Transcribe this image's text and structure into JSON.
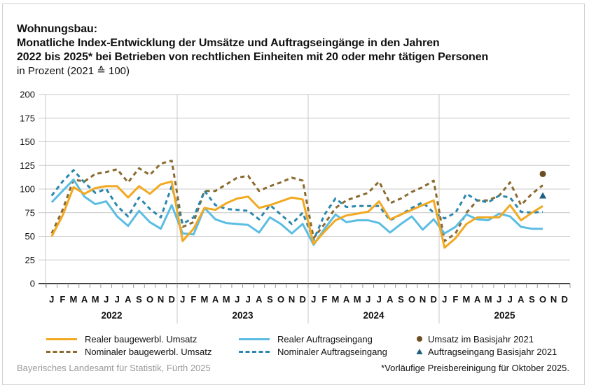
{
  "title": {
    "line1": "Wohnungsbau:",
    "line2": "Monatliche Index-Entwicklung der Umsätze und Auftragseingänge in den Jahren",
    "line3": "2022 bis 2025* bei Betrieben von rechtlichen Einheiten mit 20 oder mehr tätigen Personen",
    "subtitle": "in Prozent (2021 ≙ 100)"
  },
  "source": "Bayerisches Landesamt für Statistik, Fürth 2025",
  "footnote": "*Vorläufige Preisbereinigung für Oktober 2025.",
  "colors": {
    "real_umsatz": "#f2a922",
    "nominal_umsatz": "#8a6a2e",
    "real_auftrag": "#5cbde3",
    "nominal_auftrag": "#2b87ad",
    "marker_umsatz": "#6b4e22",
    "marker_auftrag": "#1c5f80",
    "grid": "#c8c8c8",
    "axis": "#444444"
  },
  "chart_data": {
    "type": "line",
    "title": "Monatliche Index-Entwicklung der Umsätze und Auftragseingänge 2022 bis 2025",
    "xlabel": "",
    "ylabel": "in Prozent (2021 = 100)",
    "ylim": [
      0,
      200
    ],
    "yticks": [
      0,
      25,
      50,
      75,
      100,
      125,
      150,
      175,
      200
    ],
    "grid": true,
    "legend_position": "bottom",
    "years": [
      "2022",
      "2023",
      "2024",
      "2025"
    ],
    "months": [
      "J",
      "F",
      "M",
      "A",
      "M",
      "J",
      "J",
      "A",
      "S",
      "O",
      "N",
      "D"
    ],
    "series": [
      {
        "key": "real_umsatz",
        "name": "Realer baugewerbl. Umsatz",
        "style": "solid",
        "values": [
          50,
          72,
          102,
          95,
          101,
          103,
          103,
          91,
          103,
          95,
          105,
          108,
          45,
          58,
          80,
          78,
          85,
          90,
          92,
          80,
          83,
          87,
          91,
          89,
          42,
          55,
          67,
          72,
          74,
          76,
          87,
          68,
          73,
          78,
          83,
          88,
          38,
          48,
          63,
          70,
          70,
          70,
          83,
          67,
          75,
          82
        ]
      },
      {
        "key": "nominal_umsatz",
        "name": "Nominaler baugewerbl. Umsatz",
        "style": "dashed",
        "values": [
          53,
          78,
          110,
          108,
          116,
          118,
          121,
          107,
          122,
          115,
          127,
          130,
          60,
          65,
          98,
          98,
          105,
          112,
          114,
          98,
          103,
          107,
          112,
          109,
          48,
          63,
          80,
          88,
          92,
          96,
          108,
          85,
          90,
          97,
          102,
          109,
          45,
          53,
          75,
          88,
          88,
          93,
          107,
          83,
          95,
          104
        ]
      },
      {
        "key": "real_auftrag",
        "name": "Realer Auftragseingang",
        "style": "solid",
        "values": [
          86,
          98,
          110,
          92,
          84,
          87,
          71,
          61,
          77,
          65,
          58,
          83,
          53,
          52,
          80,
          68,
          64,
          63,
          62,
          54,
          70,
          63,
          53,
          63,
          41,
          58,
          73,
          65,
          67,
          67,
          64,
          54,
          63,
          71,
          57,
          68,
          53,
          60,
          73,
          68,
          67,
          74,
          71,
          60,
          58,
          58
        ]
      },
      {
        "key": "nominal_auftrag",
        "name": "Nominaler Auftragseingang",
        "style": "dashed",
        "values": [
          93,
          108,
          120,
          107,
          96,
          100,
          82,
          71,
          91,
          79,
          70,
          103,
          63,
          70,
          98,
          83,
          79,
          78,
          77,
          68,
          83,
          73,
          63,
          75,
          46,
          73,
          90,
          81,
          82,
          82,
          82,
          67,
          73,
          80,
          86,
          75,
          69,
          75,
          95,
          88,
          86,
          93,
          91,
          76,
          75,
          76
        ]
      }
    ],
    "markers": [
      {
        "key": "marker_umsatz",
        "name": "Umsatz im Basisjahr 2021",
        "shape": "circle",
        "month_index": 45,
        "value": 116
      },
      {
        "key": "marker_auftrag",
        "name": "Auftragseingang Basisjahr 2021",
        "shape": "triangle",
        "month_index": 45,
        "value": 93
      }
    ]
  }
}
